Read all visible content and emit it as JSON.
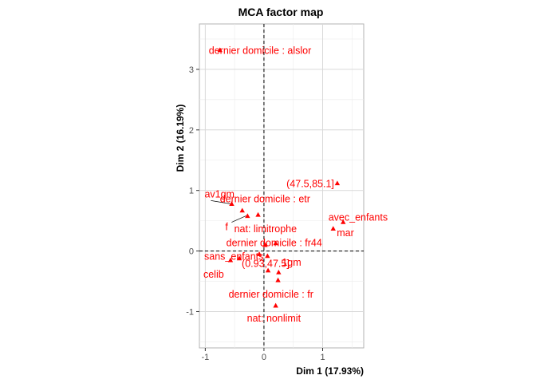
{
  "chart_data": {
    "type": "scatter",
    "title": "MCA factor map",
    "xlabel": "Dim 1 (17.93%)",
    "ylabel": "Dim 2 (16.19%)",
    "xlim": [
      -1.1,
      1.7
    ],
    "ylim": [
      -1.6,
      3.75
    ],
    "x_ticks": [
      -1,
      0,
      1
    ],
    "y_ticks": [
      -1,
      0,
      1,
      2,
      3
    ],
    "grid": true,
    "reference_lines": {
      "x": 0,
      "y": 0,
      "style": "dashed"
    },
    "point_color": "#ff0000",
    "label_color": "#ff0000",
    "marker": "triangle",
    "points": [
      {
        "label": "dernier domicile : alslor",
        "x": -0.75,
        "y": 3.32
      },
      {
        "label": "(47.5,85.1]",
        "x": 1.25,
        "y": 1.12
      },
      {
        "label": "av1gm",
        "x": -0.55,
        "y": 0.78
      },
      {
        "label": "dernier domicile : etr",
        "x": -0.37,
        "y": 0.67
      },
      {
        "label": "avec_enfants",
        "x": 1.18,
        "y": 0.37
      },
      {
        "label": "mar",
        "x": 1.35,
        "y": 0.48
      },
      {
        "label": "f",
        "x": -0.28,
        "y": 0.58
      },
      {
        "label": "nat: limitrophe",
        "x": -0.1,
        "y": 0.6
      },
      {
        "label": "dernier domicile : fr44",
        "x": 0.2,
        "y": 0.13
      },
      {
        "label": "sans_enfants",
        "x": -0.42,
        "y": -0.12
      },
      {
        "label": "celib",
        "x": -0.57,
        "y": -0.15
      },
      {
        "label": "(0.93,47.5]",
        "x": -0.08,
        "y": -0.05
      },
      {
        "label": "1gm",
        "x": 0.25,
        "y": -0.35
      },
      {
        "label": "dernier domicile : fr",
        "x": 0.24,
        "y": -0.48
      },
      {
        "label": "nat: nonlimit",
        "x": 0.2,
        "y": -0.9
      },
      {
        "label": "",
        "x": 0.06,
        "y": -0.08
      },
      {
        "label": "",
        "x": 0.02,
        "y": 0.1
      },
      {
        "label": "",
        "x": 0.07,
        "y": -0.32
      }
    ]
  }
}
